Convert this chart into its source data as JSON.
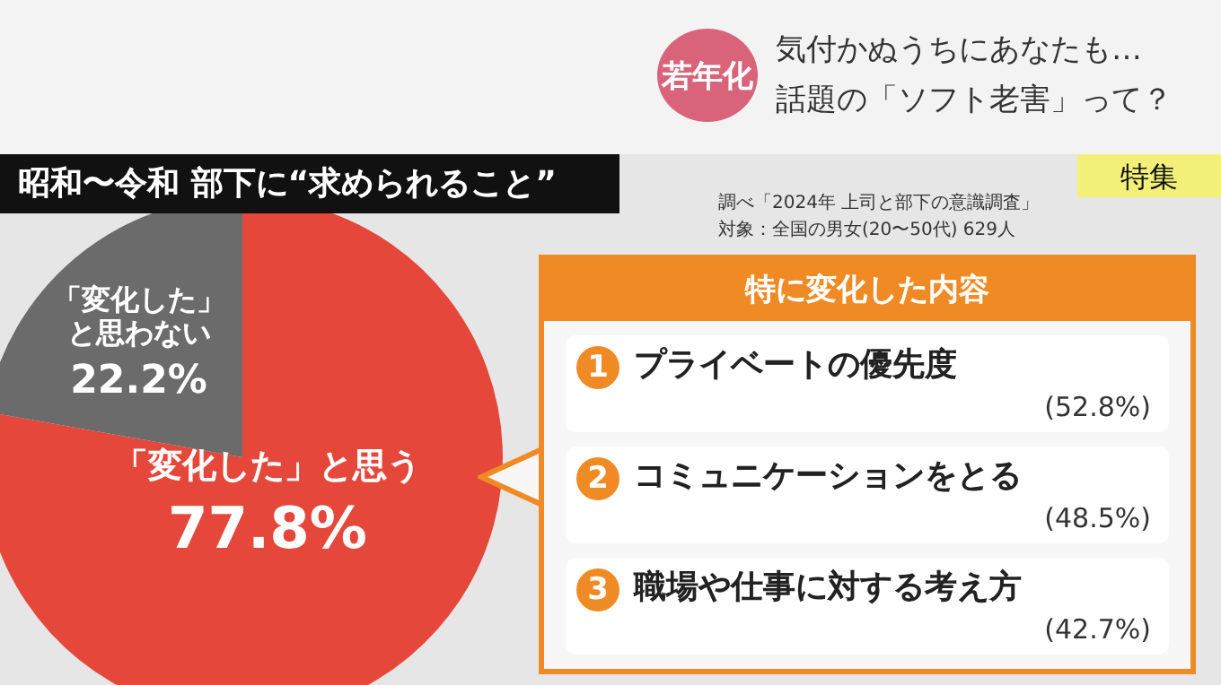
{
  "chart_data": [
    {
      "type": "pie",
      "title": "昭和〜令和 部下に“求められること”",
      "categories": [
        "「変化した」と思う",
        "「変化した」と思わない"
      ],
      "values": [
        77.8,
        22.2
      ],
      "colors": [
        "#e5483a",
        "#6b6b6b"
      ],
      "value_labels": [
        "77.8%",
        "22.2%"
      ],
      "annotations": [
        "若年化",
        "気付かぬうちにあなたも…",
        "話題の「ソフト老害」って？",
        "特集",
        "調べ「2024年 上司と部下の意識調査」",
        "対象：全国の男女(20〜50代) 629人"
      ]
    },
    {
      "type": "other",
      "title": "特に変化した内容",
      "categories": [
        "プライベートの優先度",
        "コミュニケーションをとる",
        "職場や仕事に対する考え方"
      ],
      "value_labels": [
        "(52.8%)",
        "(48.5%)",
        "(42.7%)"
      ],
      "annotations": [
        "1",
        "2",
        "3"
      ]
    }
  ]
}
